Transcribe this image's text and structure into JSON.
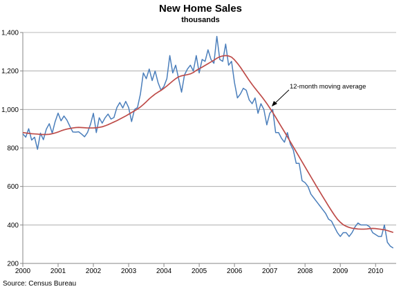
{
  "chart_data": {
    "type": "line",
    "title": "New Home Sales",
    "subtitle": "thousands",
    "xlabel": "",
    "ylabel": "",
    "source": "Source: Census Bureau",
    "x_start": 2000,
    "x_end": 2010.5833,
    "x_ticks": [
      "2000",
      "2001",
      "2002",
      "2003",
      "2004",
      "2005",
      "2006",
      "2007",
      "2008",
      "2009",
      "2010"
    ],
    "ylim": [
      200,
      1400
    ],
    "y_ticks": [
      "200",
      "400",
      "600",
      "800",
      "1,000",
      "1,200",
      "1,400"
    ],
    "y_tick_values": [
      200,
      400,
      600,
      800,
      1000,
      1200,
      1400
    ],
    "grid": "horizontal",
    "colors": {
      "monthly": "#4a7ebb",
      "average": "#be4b48",
      "grid": "#a0a0a0",
      "axis": "#868686"
    },
    "annotation": {
      "text": "12-month moving average",
      "x": 2007.0,
      "y": 1000
    },
    "series": [
      {
        "name": "",
        "values": [
          873,
          856,
          900,
          841,
          856,
          793,
          877,
          843,
          898,
          926,
          877,
          937,
          981,
          941,
          966,
          945,
          913,
          883,
          882,
          884,
          872,
          858,
          880,
          922,
          980,
          880,
          957,
          929,
          957,
          976,
          950,
          958,
          1010,
          1036,
          1008,
          1042,
          1010,
          937,
          1000,
          1010,
          1080,
          1190,
          1160,
          1210,
          1150,
          1200,
          1140,
          1100,
          1120,
          1160,
          1280,
          1190,
          1230,
          1160,
          1090,
          1180,
          1210,
          1230,
          1200,
          1280,
          1190,
          1260,
          1250,
          1310,
          1260,
          1240,
          1380,
          1260,
          1250,
          1340,
          1230,
          1250,
          1140,
          1060,
          1080,
          1110,
          1100,
          1050,
          1030,
          1060,
          980,
          1030,
          1000,
          920,
          980,
          1000,
          880,
          880,
          850,
          830,
          880,
          820,
          790,
          720,
          720,
          630,
          620,
          600,
          560,
          540,
          520,
          500,
          480,
          460,
          430,
          420,
          390,
          360,
          340,
          360,
          360,
          340,
          360,
          390,
          410,
          400,
          400,
          400,
          390,
          360,
          350,
          340,
          340,
          400,
          310,
          290,
          280
        ]
      },
      {
        "name": "12-month moving average",
        "values": [
          880,
          878,
          876,
          874,
          873,
          872,
          870,
          870,
          870,
          871,
          874,
          878,
          883,
          889,
          894,
          898,
          901,
          904,
          906,
          907,
          906,
          905,
          904,
          904,
          904,
          905,
          907,
          910,
          915,
          921,
          928,
          935,
          942,
          950,
          958,
          966,
          975,
          984,
          993,
          1002,
          1013,
          1026,
          1040,
          1055,
          1068,
          1080,
          1090,
          1099,
          1110,
          1122,
          1135,
          1148,
          1160,
          1170,
          1175,
          1178,
          1181,
          1185,
          1192,
          1203,
          1212,
          1220,
          1229,
          1238,
          1247,
          1256,
          1266,
          1274,
          1278,
          1280,
          1278,
          1272,
          1258,
          1240,
          1220,
          1197,
          1174,
          1151,
          1130,
          1110,
          1091,
          1072,
          1052,
          1031,
          1008,
          985,
          960,
          934,
          909,
          884,
          858,
          832,
          806,
          780,
          754,
          728,
          702,
          676,
          650,
          624,
          598,
          573,
          548,
          523,
          498,
          474,
          451,
          430,
          414,
          401,
          393,
          387,
          383,
          381,
          379,
          378,
          378,
          379,
          381,
          382,
          381,
          379,
          377,
          375,
          371,
          366,
          361
        ]
      }
    ]
  }
}
